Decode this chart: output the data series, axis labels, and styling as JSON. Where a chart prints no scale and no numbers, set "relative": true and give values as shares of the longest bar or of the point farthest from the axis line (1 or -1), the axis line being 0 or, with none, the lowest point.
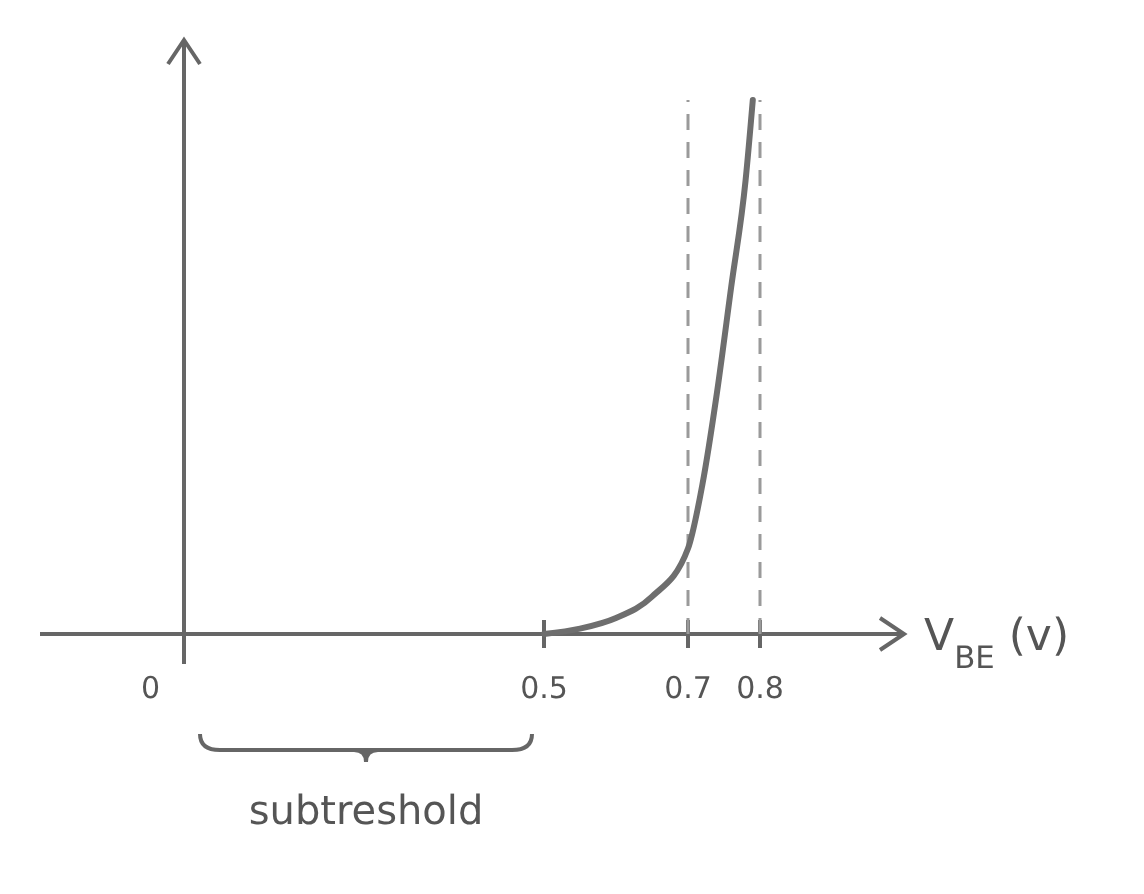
{
  "chart_data": {
    "type": "line",
    "relative": true,
    "xlabel": "V$_{BE}$ (v)",
    "xlim": [
      -0.2,
      1.0
    ],
    "xticks": [
      0,
      0.5,
      0.7,
      {
        "value": 0.8,
        "label": "0.8"
      }
    ],
    "series": [
      {
        "type": "line",
        "color": "#6e6e6e",
        "x": [
          0.5,
          0.55,
          0.6,
          0.65,
          0.7,
          0.72,
          0.74,
          0.76,
          0.78,
          0.79
        ],
        "values": [
          0,
          0.01,
          0.03,
          0.07,
          0.16,
          0.28,
          0.45,
          0.65,
          0.85,
          1
        ]
      }
    ],
    "ref_lines": [
      {
        "axis": "x",
        "value": 0.7,
        "color": "#9a9a9a",
        "line_style": "dashed"
      },
      {
        "axis": "x",
        "value": 0.8,
        "color": "#9a9a9a",
        "line_style": "dashed"
      }
    ],
    "annotations": [
      "subtreshold"
    ]
  }
}
